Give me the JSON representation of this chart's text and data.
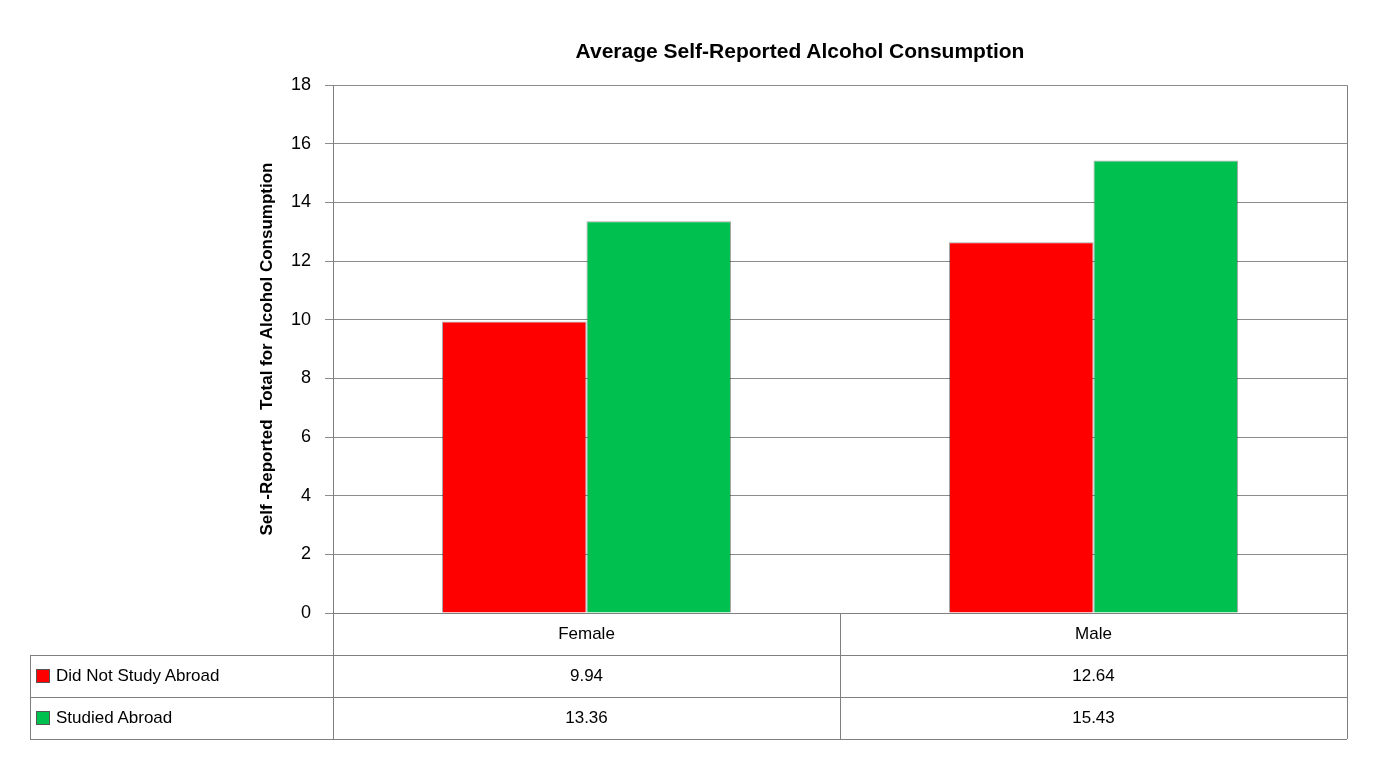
{
  "chart_data": {
    "type": "bar",
    "title": "Average Self-Reported Alcohol Consumption",
    "ylabel": "Self -Reported  Total for Alcohol Consumption",
    "categories": [
      "Female",
      "Male"
    ],
    "series": [
      {
        "name": "Did Not Study Abroad",
        "color": "#ff0000",
        "values": [
          9.94,
          12.64
        ]
      },
      {
        "name": "Studied Abroad",
        "color": "#00c050",
        "values": [
          13.36,
          15.43
        ]
      }
    ],
    "ylim": [
      0,
      18
    ],
    "yticks": [
      0,
      2,
      4,
      6,
      8,
      10,
      12,
      14,
      16,
      18
    ],
    "grid": "y",
    "legend": "bottom",
    "data_labels": true
  }
}
